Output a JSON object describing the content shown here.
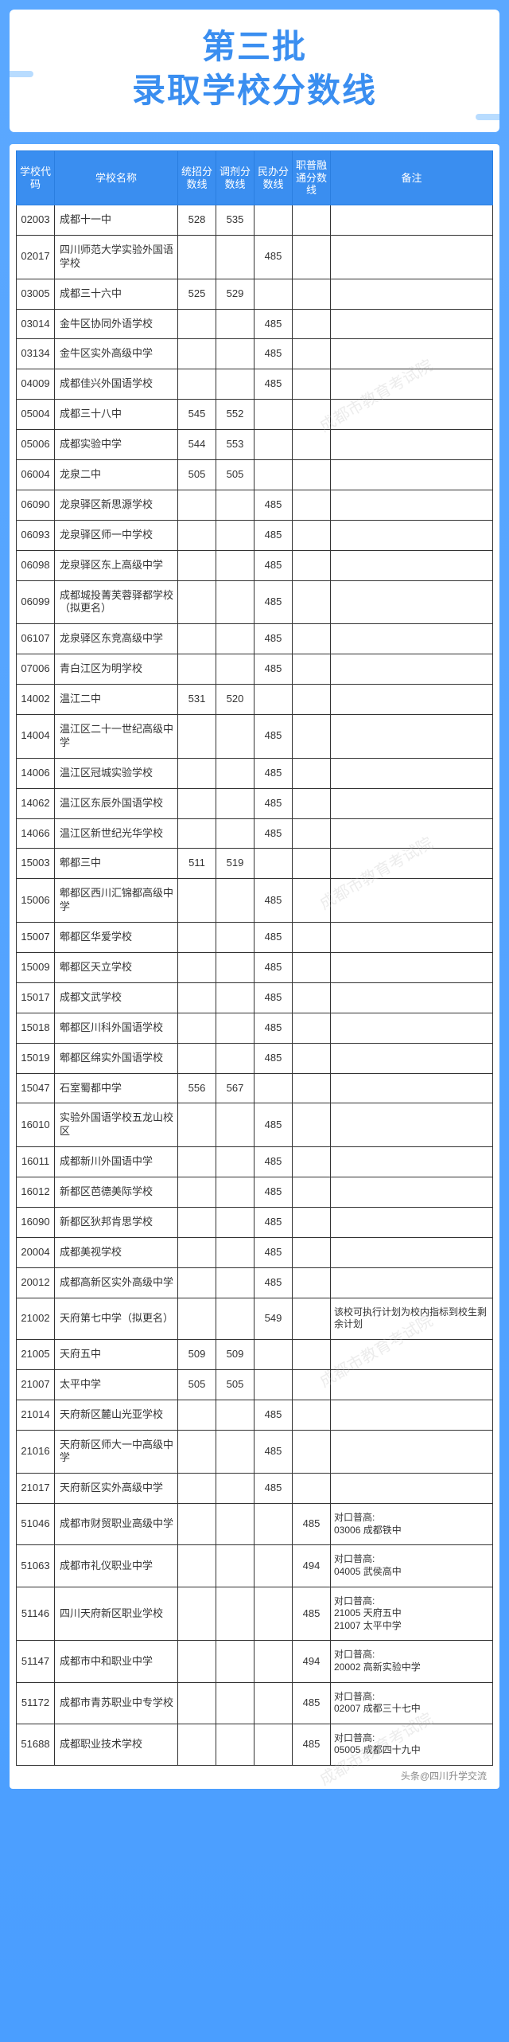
{
  "title": {
    "line1": "第三批",
    "line2": "录取学校分数线"
  },
  "table": {
    "headers": [
      "学校代码",
      "学校名称",
      "统招分数线",
      "调剂分数线",
      "民办分数线",
      "职普融通分数线",
      "备注"
    ],
    "rows": [
      [
        "02003",
        "成都十一中",
        "528",
        "535",
        "",
        "",
        ""
      ],
      [
        "02017",
        "四川师范大学实验外国语学校",
        "",
        "",
        "485",
        "",
        ""
      ],
      [
        "03005",
        "成都三十六中",
        "525",
        "529",
        "",
        "",
        ""
      ],
      [
        "03014",
        "金牛区协同外语学校",
        "",
        "",
        "485",
        "",
        ""
      ],
      [
        "03134",
        "金牛区实外高级中学",
        "",
        "",
        "485",
        "",
        ""
      ],
      [
        "04009",
        "成都佳兴外国语学校",
        "",
        "",
        "485",
        "",
        ""
      ],
      [
        "05004",
        "成都三十八中",
        "545",
        "552",
        "",
        "",
        ""
      ],
      [
        "05006",
        "成都实验中学",
        "544",
        "553",
        "",
        "",
        ""
      ],
      [
        "06004",
        "龙泉二中",
        "505",
        "505",
        "",
        "",
        ""
      ],
      [
        "06090",
        "龙泉驿区新思源学校",
        "",
        "",
        "485",
        "",
        ""
      ],
      [
        "06093",
        "龙泉驿区师一中学校",
        "",
        "",
        "485",
        "",
        ""
      ],
      [
        "06098",
        "龙泉驿区东上高级中学",
        "",
        "",
        "485",
        "",
        ""
      ],
      [
        "06099",
        "成都城投菁芙蓉驿都学校（拟更名）",
        "",
        "",
        "485",
        "",
        ""
      ],
      [
        "06107",
        "龙泉驿区东竞高级中学",
        "",
        "",
        "485",
        "",
        ""
      ],
      [
        "07006",
        "青白江区为明学校",
        "",
        "",
        "485",
        "",
        ""
      ],
      [
        "14002",
        "温江二中",
        "531",
        "520",
        "",
        "",
        ""
      ],
      [
        "14004",
        "温江区二十一世纪高级中学",
        "",
        "",
        "485",
        "",
        ""
      ],
      [
        "14006",
        "温江区冠城实验学校",
        "",
        "",
        "485",
        "",
        ""
      ],
      [
        "14062",
        "温江区东辰外国语学校",
        "",
        "",
        "485",
        "",
        ""
      ],
      [
        "14066",
        "温江区新世纪光华学校",
        "",
        "",
        "485",
        "",
        ""
      ],
      [
        "15003",
        "郫都三中",
        "511",
        "519",
        "",
        "",
        ""
      ],
      [
        "15006",
        "郫都区西川汇锦都高级中学",
        "",
        "",
        "485",
        "",
        ""
      ],
      [
        "15007",
        "郫都区华爱学校",
        "",
        "",
        "485",
        "",
        ""
      ],
      [
        "15009",
        "郫都区天立学校",
        "",
        "",
        "485",
        "",
        ""
      ],
      [
        "15017",
        "成都文武学校",
        "",
        "",
        "485",
        "",
        ""
      ],
      [
        "15018",
        "郫都区川科外国语学校",
        "",
        "",
        "485",
        "",
        ""
      ],
      [
        "15019",
        "郫都区绵实外国语学校",
        "",
        "",
        "485",
        "",
        ""
      ],
      [
        "15047",
        "石室蜀都中学",
        "556",
        "567",
        "",
        "",
        ""
      ],
      [
        "16010",
        "实验外国语学校五龙山校区",
        "",
        "",
        "485",
        "",
        ""
      ],
      [
        "16011",
        "成都新川外国语中学",
        "",
        "",
        "485",
        "",
        ""
      ],
      [
        "16012",
        "新都区芭德美际学校",
        "",
        "",
        "485",
        "",
        ""
      ],
      [
        "16090",
        "新都区狄邦肯思学校",
        "",
        "",
        "485",
        "",
        ""
      ],
      [
        "20004",
        "成都美视学校",
        "",
        "",
        "485",
        "",
        ""
      ],
      [
        "20012",
        "成都高新区实外高级中学",
        "",
        "",
        "485",
        "",
        ""
      ],
      [
        "21002",
        "天府第七中学（拟更名）",
        "",
        "",
        "549",
        "",
        "该校可执行计划为校内指标到校生剩余计划"
      ],
      [
        "21005",
        "天府五中",
        "509",
        "509",
        "",
        "",
        ""
      ],
      [
        "21007",
        "太平中学",
        "505",
        "505",
        "",
        "",
        ""
      ],
      [
        "21014",
        "天府新区麓山光亚学校",
        "",
        "",
        "485",
        "",
        ""
      ],
      [
        "21016",
        "天府新区师大一中高级中学",
        "",
        "",
        "485",
        "",
        ""
      ],
      [
        "21017",
        "天府新区实外高级中学",
        "",
        "",
        "485",
        "",
        ""
      ],
      [
        "51046",
        "成都市财贸职业高级中学",
        "",
        "",
        "",
        "485",
        "对口普高:\n03006 成都铁中"
      ],
      [
        "51063",
        "成都市礼仪职业中学",
        "",
        "",
        "",
        "494",
        "对口普高:\n04005 武侯高中"
      ],
      [
        "51146",
        "四川天府新区职业学校",
        "",
        "",
        "",
        "485",
        "对口普高:\n21005 天府五中\n21007 太平中学"
      ],
      [
        "51147",
        "成都市中和职业中学",
        "",
        "",
        "",
        "494",
        "对口普高:\n20002 高新实验中学"
      ],
      [
        "51172",
        "成都市青苏职业中专学校",
        "",
        "",
        "",
        "485",
        "对口普高:\n02007 成都三十七中"
      ],
      [
        "51688",
        "成都职业技术学校",
        "",
        "",
        "",
        "485",
        "对口普高:\n05005 成都四十九中"
      ]
    ]
  },
  "watermark_text": "成都市教育考试院",
  "footer_source": "头条@四川升学交流",
  "colors": {
    "page_bg": "#4a9eff",
    "header_bg": "#3a8ef0",
    "header_fg": "#ffffff",
    "border": "#333333",
    "title_color": "#3a8ef0"
  }
}
